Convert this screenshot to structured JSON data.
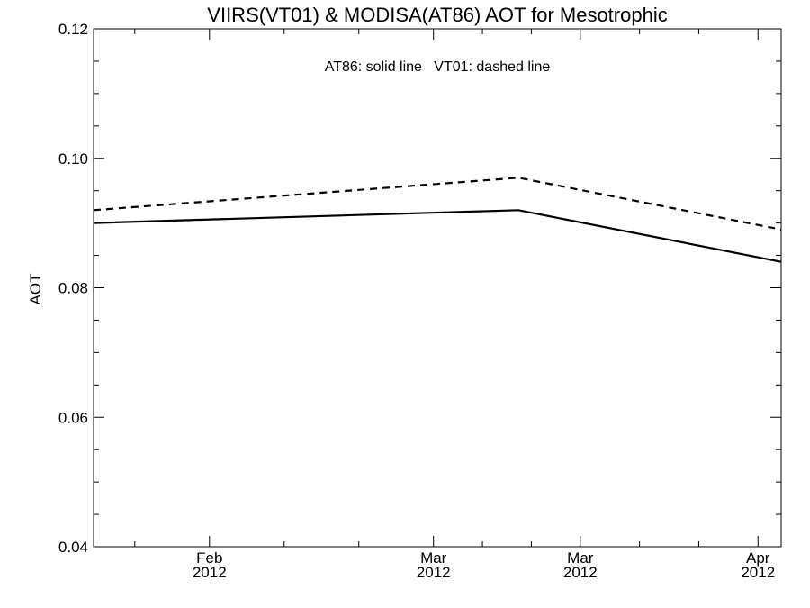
{
  "chart_data": {
    "type": "line",
    "title": "VIIRS(VT01) & MODISA(AT86)  AOT for Mesotrophic",
    "ylabel": "AOT",
    "xlabel": "",
    "ylim": [
      0.04,
      0.12
    ],
    "xlim": [
      "2012-01-17",
      "2012-04-15"
    ],
    "yticks": [
      "0.04",
      "0.06",
      "0.08",
      "0.10",
      "0.12"
    ],
    "xticks": [
      {
        "month": "Feb",
        "year": "2012",
        "date": "2012-02-01"
      },
      {
        "month": "Mar",
        "year": "2012",
        "date": "2012-03-01"
      },
      {
        "month": "Mar",
        "year": "2012",
        "date": "2012-03-20"
      },
      {
        "month": "Apr",
        "year": "2012",
        "date": "2012-04-12"
      }
    ],
    "annotation": "AT86: solid line   VT01: dashed line",
    "series": [
      {
        "style": "solid",
        "x": [
          "2012-01-17",
          "2012-03-12",
          "2012-04-15"
        ],
        "values": [
          0.09,
          0.092,
          0.084
        ]
      },
      {
        "style": "dashed",
        "x": [
          "2012-01-17",
          "2012-03-12",
          "2012-04-15"
        ],
        "values": [
          0.092,
          0.097,
          0.089
        ]
      }
    ]
  }
}
